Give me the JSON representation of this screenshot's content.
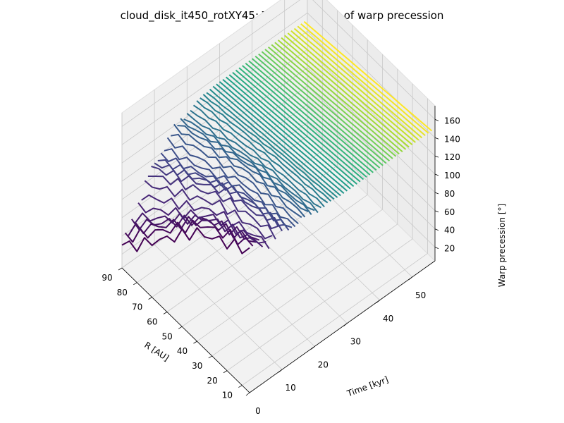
{
  "chart_data": {
    "type": "line",
    "title": "cloud_disk_it450_rotXY45: Time evolution of warp precession",
    "xlabel": "R [AU]",
    "ylabel": "Time [kyr]",
    "zlabel": "Warp precession [°]",
    "x_ticks": [
      "10",
      "20",
      "30",
      "40",
      "50",
      "60",
      "70",
      "80",
      "90"
    ],
    "y_ticks": [
      "0",
      "10",
      "20",
      "30",
      "40",
      "50"
    ],
    "z_ticks": [
      "20",
      "40",
      "60",
      "80",
      "100",
      "120",
      "140",
      "160"
    ],
    "xlim": [
      5,
      90
    ],
    "ylim": [
      0,
      57
    ],
    "zlim": [
      5,
      175
    ],
    "colormap": "viridis",
    "grid": true,
    "series_summary": {
      "t_values": [
        0,
        1,
        2,
        3,
        4,
        5,
        6,
        7,
        8,
        9,
        10,
        11,
        12,
        13,
        14,
        15,
        16,
        17,
        18,
        19,
        20,
        21,
        22,
        23,
        24,
        25,
        26,
        27,
        28,
        29,
        30,
        31,
        32,
        33,
        34,
        35,
        36,
        37,
        38,
        39,
        40,
        41,
        42,
        43,
        44,
        45,
        46,
        47,
        48,
        49,
        50,
        51,
        52,
        53,
        54,
        55,
        56
      ],
      "r_values": [
        5,
        10,
        15,
        20,
        25,
        30,
        35,
        40,
        45,
        50,
        55,
        60,
        65,
        70,
        75,
        80,
        85,
        90
      ],
      "inner_precession_range": [
        95,
        165
      ],
      "outer_precession_range": [
        30,
        80
      ]
    }
  }
}
